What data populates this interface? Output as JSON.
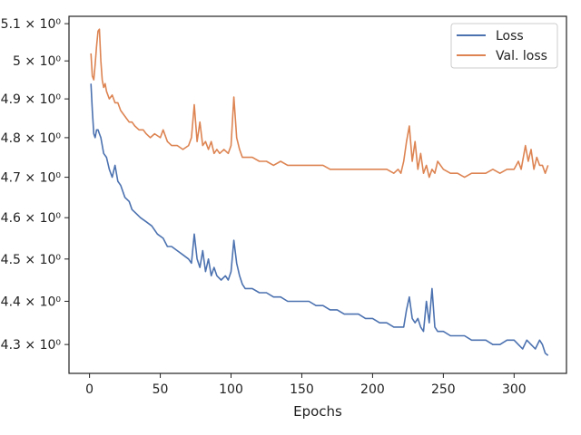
{
  "chart_data": {
    "type": "line",
    "title": "",
    "xlabel": "Epochs",
    "ylabel": "",
    "xlim": [
      -14.5,
      337
    ],
    "ylim": [
      4.2345,
      5.12
    ],
    "yscale": "log",
    "grid": false,
    "legend_position": "top-right",
    "x_ticks": [
      0,
      50,
      100,
      150,
      200,
      250,
      300
    ],
    "y_ticks": [
      {
        "value": 4.3,
        "label": "4.3 × 10⁰"
      },
      {
        "value": 4.4,
        "label": "4.4 × 10⁰"
      },
      {
        "value": 4.5,
        "label": "4.5 × 10⁰"
      },
      {
        "value": 4.6,
        "label": "4.6 × 10⁰"
      },
      {
        "value": 4.7,
        "label": "4.7 × 10⁰"
      },
      {
        "value": 4.8,
        "label": "4.8 × 10⁰"
      },
      {
        "value": 4.9,
        "label": "4.9 × 10⁰"
      },
      {
        "value": 5.0,
        "label": "5 × 10⁰"
      },
      {
        "value": 5.1,
        "label": "5.1 × 10⁰"
      }
    ],
    "series": [
      {
        "name": "Loss",
        "color": "#4c72b0",
        "points": [
          [
            1,
            4.94
          ],
          [
            2,
            4.87
          ],
          [
            3,
            4.81
          ],
          [
            4,
            4.8
          ],
          [
            5,
            4.82
          ],
          [
            6,
            4.82
          ],
          [
            7,
            4.81
          ],
          [
            8,
            4.8
          ],
          [
            10,
            4.76
          ],
          [
            12,
            4.75
          ],
          [
            14,
            4.72
          ],
          [
            16,
            4.7
          ],
          [
            18,
            4.73
          ],
          [
            20,
            4.69
          ],
          [
            22,
            4.68
          ],
          [
            25,
            4.65
          ],
          [
            28,
            4.64
          ],
          [
            30,
            4.62
          ],
          [
            33,
            4.61
          ],
          [
            36,
            4.6
          ],
          [
            40,
            4.59
          ],
          [
            44,
            4.58
          ],
          [
            48,
            4.56
          ],
          [
            52,
            4.55
          ],
          [
            55,
            4.53
          ],
          [
            58,
            4.53
          ],
          [
            62,
            4.52
          ],
          [
            66,
            4.51
          ],
          [
            70,
            4.5
          ],
          [
            72,
            4.49
          ],
          [
            74,
            4.56
          ],
          [
            76,
            4.5
          ],
          [
            78,
            4.48
          ],
          [
            80,
            4.52
          ],
          [
            82,
            4.47
          ],
          [
            84,
            4.5
          ],
          [
            86,
            4.46
          ],
          [
            88,
            4.48
          ],
          [
            90,
            4.46
          ],
          [
            93,
            4.45
          ],
          [
            96,
            4.46
          ],
          [
            98,
            4.45
          ],
          [
            100,
            4.47
          ],
          [
            102,
            4.545
          ],
          [
            104,
            4.49
          ],
          [
            106,
            4.46
          ],
          [
            108,
            4.44
          ],
          [
            110,
            4.43
          ],
          [
            115,
            4.43
          ],
          [
            120,
            4.42
          ],
          [
            125,
            4.42
          ],
          [
            130,
            4.41
          ],
          [
            135,
            4.41
          ],
          [
            140,
            4.4
          ],
          [
            145,
            4.4
          ],
          [
            150,
            4.4
          ],
          [
            155,
            4.4
          ],
          [
            160,
            4.39
          ],
          [
            165,
            4.39
          ],
          [
            170,
            4.38
          ],
          [
            175,
            4.38
          ],
          [
            180,
            4.37
          ],
          [
            185,
            4.37
          ],
          [
            190,
            4.37
          ],
          [
            195,
            4.36
          ],
          [
            200,
            4.36
          ],
          [
            205,
            4.35
          ],
          [
            210,
            4.35
          ],
          [
            215,
            4.34
          ],
          [
            218,
            4.34
          ],
          [
            222,
            4.34
          ],
          [
            224,
            4.38
          ],
          [
            226,
            4.41
          ],
          [
            228,
            4.36
          ],
          [
            230,
            4.35
          ],
          [
            232,
            4.36
          ],
          [
            234,
            4.34
          ],
          [
            236,
            4.33
          ],
          [
            238,
            4.4
          ],
          [
            240,
            4.35
          ],
          [
            242,
            4.43
          ],
          [
            244,
            4.34
          ],
          [
            246,
            4.33
          ],
          [
            250,
            4.33
          ],
          [
            255,
            4.32
          ],
          [
            260,
            4.32
          ],
          [
            265,
            4.32
          ],
          [
            270,
            4.31
          ],
          [
            275,
            4.31
          ],
          [
            280,
            4.31
          ],
          [
            285,
            4.3
          ],
          [
            290,
            4.3
          ],
          [
            295,
            4.31
          ],
          [
            300,
            4.31
          ],
          [
            303,
            4.3
          ],
          [
            306,
            4.29
          ],
          [
            309,
            4.31
          ],
          [
            312,
            4.3
          ],
          [
            315,
            4.29
          ],
          [
            318,
            4.31
          ],
          [
            320,
            4.3
          ],
          [
            322,
            4.28
          ],
          [
            324,
            4.275
          ]
        ]
      },
      {
        "name": "Val. loss",
        "color": "#dd8452",
        "points": [
          [
            1,
            5.02
          ],
          [
            2,
            4.96
          ],
          [
            3,
            4.95
          ],
          [
            4,
            4.99
          ],
          [
            5,
            5.04
          ],
          [
            6,
            5.08
          ],
          [
            7,
            5.085
          ],
          [
            8,
            5.0
          ],
          [
            9,
            4.95
          ],
          [
            10,
            4.93
          ],
          [
            11,
            4.94
          ],
          [
            12,
            4.92
          ],
          [
            14,
            4.9
          ],
          [
            16,
            4.91
          ],
          [
            18,
            4.89
          ],
          [
            20,
            4.89
          ],
          [
            22,
            4.87
          ],
          [
            24,
            4.86
          ],
          [
            26,
            4.85
          ],
          [
            28,
            4.84
          ],
          [
            30,
            4.84
          ],
          [
            32,
            4.83
          ],
          [
            35,
            4.82
          ],
          [
            38,
            4.82
          ],
          [
            40,
            4.81
          ],
          [
            43,
            4.8
          ],
          [
            46,
            4.81
          ],
          [
            50,
            4.8
          ],
          [
            52,
            4.82
          ],
          [
            55,
            4.79
          ],
          [
            58,
            4.78
          ],
          [
            62,
            4.78
          ],
          [
            66,
            4.77
          ],
          [
            70,
            4.78
          ],
          [
            72,
            4.8
          ],
          [
            74,
            4.885
          ],
          [
            76,
            4.79
          ],
          [
            78,
            4.84
          ],
          [
            80,
            4.78
          ],
          [
            82,
            4.79
          ],
          [
            84,
            4.77
          ],
          [
            86,
            4.79
          ],
          [
            88,
            4.76
          ],
          [
            90,
            4.77
          ],
          [
            92,
            4.76
          ],
          [
            95,
            4.77
          ],
          [
            98,
            4.76
          ],
          [
            100,
            4.78
          ],
          [
            102,
            4.905
          ],
          [
            104,
            4.8
          ],
          [
            106,
            4.77
          ],
          [
            108,
            4.75
          ],
          [
            110,
            4.75
          ],
          [
            115,
            4.75
          ],
          [
            120,
            4.74
          ],
          [
            125,
            4.74
          ],
          [
            130,
            4.73
          ],
          [
            135,
            4.74
          ],
          [
            140,
            4.73
          ],
          [
            145,
            4.73
          ],
          [
            150,
            4.73
          ],
          [
            155,
            4.73
          ],
          [
            160,
            4.73
          ],
          [
            165,
            4.73
          ],
          [
            170,
            4.72
          ],
          [
            175,
            4.72
          ],
          [
            180,
            4.72
          ],
          [
            185,
            4.72
          ],
          [
            190,
            4.72
          ],
          [
            195,
            4.72
          ],
          [
            200,
            4.72
          ],
          [
            205,
            4.72
          ],
          [
            210,
            4.72
          ],
          [
            215,
            4.71
          ],
          [
            218,
            4.72
          ],
          [
            220,
            4.71
          ],
          [
            222,
            4.74
          ],
          [
            224,
            4.79
          ],
          [
            226,
            4.83
          ],
          [
            228,
            4.74
          ],
          [
            230,
            4.79
          ],
          [
            232,
            4.72
          ],
          [
            234,
            4.76
          ],
          [
            236,
            4.71
          ],
          [
            238,
            4.73
          ],
          [
            240,
            4.7
          ],
          [
            242,
            4.72
          ],
          [
            244,
            4.71
          ],
          [
            246,
            4.74
          ],
          [
            250,
            4.72
          ],
          [
            255,
            4.71
          ],
          [
            260,
            4.71
          ],
          [
            265,
            4.7
          ],
          [
            270,
            4.71
          ],
          [
            275,
            4.71
          ],
          [
            280,
            4.71
          ],
          [
            285,
            4.72
          ],
          [
            290,
            4.71
          ],
          [
            295,
            4.72
          ],
          [
            300,
            4.72
          ],
          [
            303,
            4.74
          ],
          [
            305,
            4.72
          ],
          [
            308,
            4.78
          ],
          [
            310,
            4.74
          ],
          [
            312,
            4.77
          ],
          [
            314,
            4.72
          ],
          [
            316,
            4.75
          ],
          [
            318,
            4.73
          ],
          [
            320,
            4.73
          ],
          [
            322,
            4.71
          ],
          [
            324,
            4.73
          ]
        ]
      }
    ]
  }
}
